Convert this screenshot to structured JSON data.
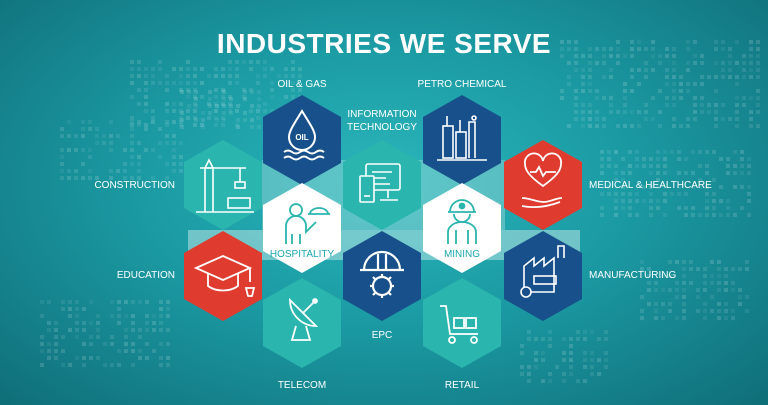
{
  "title": "INDUSTRIES WE SERVE",
  "colors": {
    "background": "#1b9aa3",
    "navy": "#17508a",
    "teal": "#2ab5ae",
    "red": "#df3b2f",
    "white": "#ffffff",
    "lightband": "#c9ecea"
  },
  "industries": {
    "oil_gas": {
      "label": "OIL & GAS",
      "icon": "oil-drop-icon",
      "icon_text": "OIL"
    },
    "petro_chemical": {
      "label": "PETRO CHEMICAL",
      "icon": "refinery-icon"
    },
    "information_technology": {
      "label_line1": "INFORMATION",
      "label_line2": "TECHNOLOGY",
      "icon": "computer-icon"
    },
    "construction": {
      "label": "CONSTRUCTION",
      "icon": "crane-icon"
    },
    "medical": {
      "label": "MEDICAL & HEALTHCARE",
      "icon": "heart-hand-icon"
    },
    "hospitality": {
      "label": "HOSPITALITY",
      "icon": "waiter-icon"
    },
    "mining": {
      "label": "MINING",
      "icon": "miner-icon"
    },
    "education": {
      "label": "EDUCATION",
      "icon": "graduation-cap-icon"
    },
    "manufacturing": {
      "label": "MANUFACTURING",
      "icon": "factory-icon"
    },
    "epc": {
      "label": "EPC",
      "icon": "hard-hat-gear-icon"
    },
    "telecom": {
      "label": "TELECOM",
      "icon": "satellite-dish-icon"
    },
    "retail": {
      "label": "RETAIL",
      "icon": "shopping-cart-icon"
    }
  }
}
